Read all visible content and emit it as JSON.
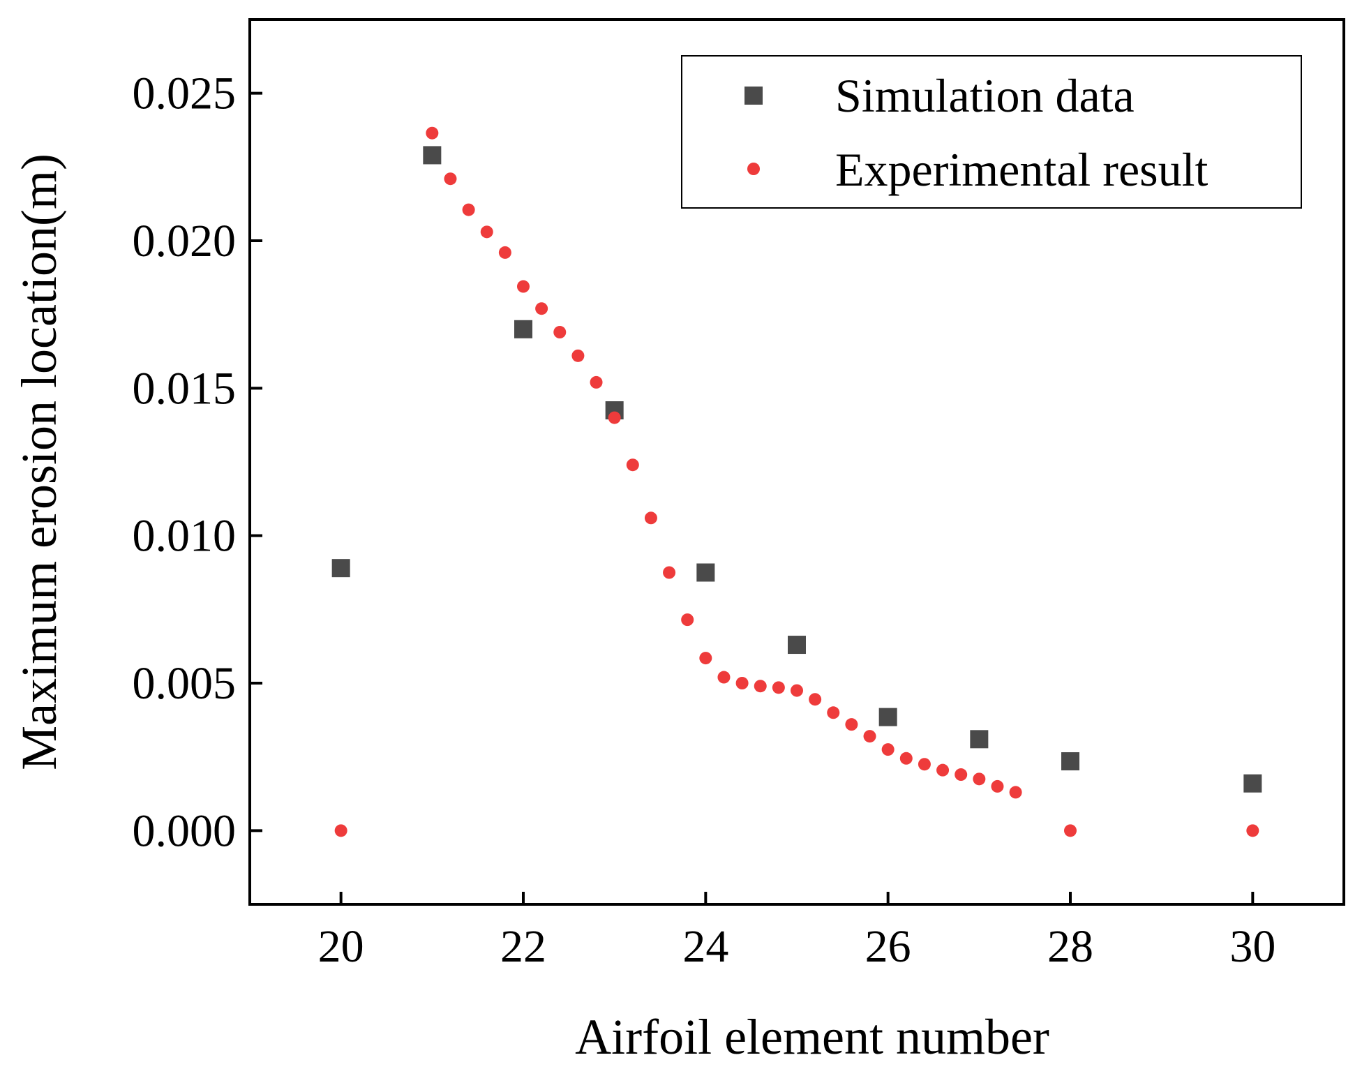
{
  "chart_data": {
    "type": "scatter",
    "title": "",
    "xlabel": "Airfoil element number",
    "ylabel": "Maximum erosion location(m)",
    "xlim": [
      19,
      31
    ],
    "ylim": [
      -0.0025,
      0.0275
    ],
    "xticks": [
      20,
      22,
      24,
      26,
      28,
      30
    ],
    "yticks": [
      0.0,
      0.005,
      0.01,
      0.015,
      0.02,
      0.025
    ],
    "xtick_labels": [
      "20",
      "22",
      "24",
      "26",
      "28",
      "30"
    ],
    "ytick_labels": [
      "0.000",
      "0.005",
      "0.010",
      "0.015",
      "0.020",
      "0.025"
    ],
    "grid": false,
    "legend_position": "top-right",
    "series": [
      {
        "name": "Simulation data",
        "marker": "square",
        "color": "#4a4a4a",
        "x": [
          20,
          21,
          22,
          23,
          24,
          25,
          26,
          27,
          28,
          30
        ],
        "y": [
          0.0089,
          0.0229,
          0.017,
          0.01425,
          0.00875,
          0.0063,
          0.00385,
          0.0031,
          0.00235,
          0.0016
        ]
      },
      {
        "name": "Experimental result",
        "marker": "circle",
        "color": "#ee3b3b",
        "x": [
          20,
          21,
          21.2,
          21.4,
          21.6,
          21.8,
          22,
          22.2,
          22.4,
          22.6,
          22.8,
          23,
          23.2,
          23.4,
          23.6,
          23.8,
          24,
          24.2,
          24.4,
          24.6,
          24.8,
          25,
          25.2,
          25.4,
          25.6,
          25.8,
          26,
          26.2,
          26.4,
          26.6,
          26.8,
          27,
          27.2,
          27.4,
          28,
          30
        ],
        "y": [
          0.0,
          0.02365,
          0.0221,
          0.02105,
          0.0203,
          0.0196,
          0.01845,
          0.0177,
          0.0169,
          0.0161,
          0.0152,
          0.014,
          0.0124,
          0.0106,
          0.00875,
          0.00715,
          0.00585,
          0.0052,
          0.005,
          0.0049,
          0.00485,
          0.00475,
          0.00445,
          0.004,
          0.0036,
          0.0032,
          0.00275,
          0.00245,
          0.00225,
          0.00205,
          0.0019,
          0.00175,
          0.0015,
          0.0013,
          0.0,
          0.0
        ]
      }
    ]
  }
}
